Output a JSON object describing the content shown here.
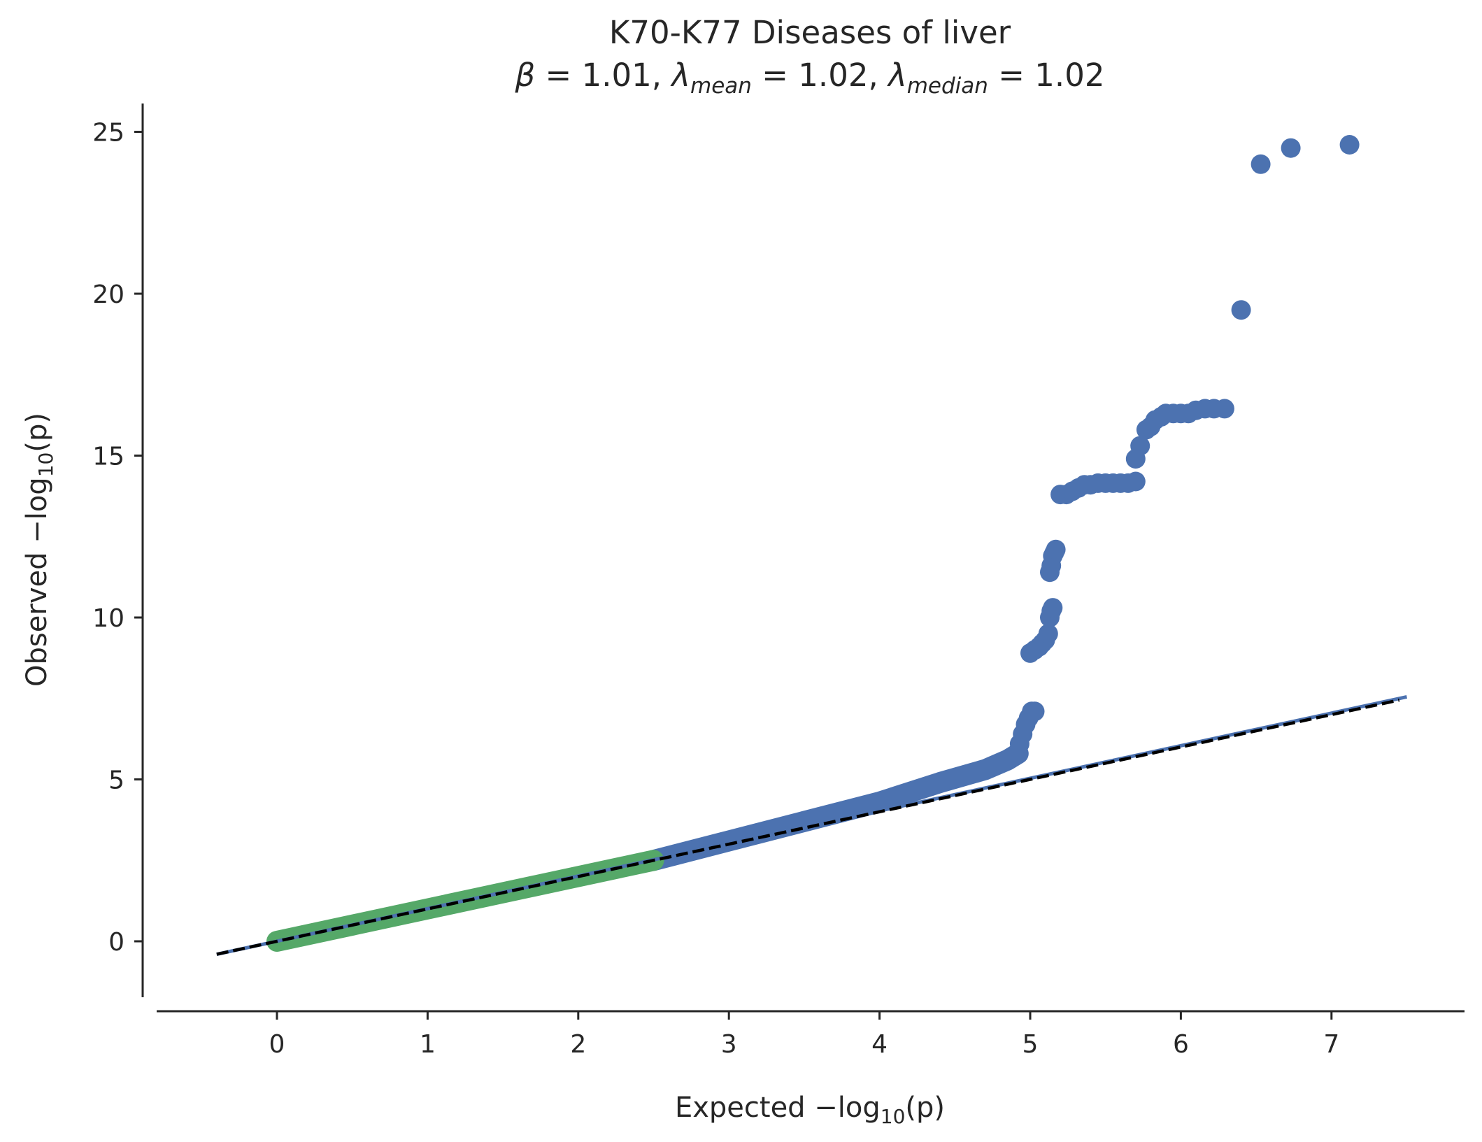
{
  "chart_data": {
    "type": "scatter",
    "title": "K70-K77 Diseases of liver",
    "subtitle": {
      "beta_symbol": "β",
      "beta_value": "1.01",
      "lambda_symbol": "λ",
      "mean_sub": "mean",
      "mean_value": "1.02",
      "median_sub": "median",
      "median_value": "1.02",
      "separator": ", ",
      "equals": " = "
    },
    "xlabel": {
      "prefix": "Expected −log",
      "sub": "10",
      "suffix": "(p)"
    },
    "ylabel": {
      "prefix": "Observed −log",
      "sub": "10",
      "suffix": "(p)"
    },
    "xlim": [
      -0.8,
      7.85
    ],
    "ylim": [
      -1.65,
      26.0
    ],
    "x_ticks": [
      0,
      1,
      2,
      3,
      4,
      5,
      6,
      7
    ],
    "y_ticks": [
      0,
      5,
      10,
      15,
      20,
      25
    ],
    "colors": {
      "null_points": "#55a868",
      "points": "#4c72b0",
      "fit_line": "#4c72b0",
      "reference_line": "#000000",
      "axis": "#262626"
    },
    "reference_line": {
      "style": "dashed",
      "x": [
        -0.4,
        7.45
      ],
      "y": [
        -0.4,
        7.45
      ]
    },
    "fit_line": {
      "x": [
        -0.4,
        7.5
      ],
      "y": [
        -0.4,
        7.55
      ]
    },
    "null_band": {
      "x": [
        0.0,
        2.5
      ],
      "y": [
        0.0,
        2.5
      ]
    },
    "trend_band": {
      "x": [
        2.5,
        3.0,
        3.5,
        4.0,
        4.4,
        4.7,
        4.85,
        4.92
      ],
      "y": [
        2.5,
        3.1,
        3.7,
        4.3,
        4.9,
        5.3,
        5.6,
        5.8
      ]
    },
    "series": [
      {
        "x": [
          4.93,
          4.95,
          4.97,
          4.99,
          5.01,
          5.03,
          5.0,
          5.03,
          5.06,
          5.08,
          5.1,
          5.12,
          5.13,
          5.14,
          5.15,
          5.13,
          5.14,
          5.15,
          5.16,
          5.17,
          5.2,
          5.24,
          5.28,
          5.32,
          5.36,
          5.4,
          5.45,
          5.5,
          5.55,
          5.6,
          5.65,
          5.7,
          5.7,
          5.73,
          5.77,
          5.8,
          5.83,
          5.87,
          5.9,
          5.95,
          6.0,
          6.05,
          6.1,
          6.16,
          6.22,
          6.29,
          6.4,
          6.53,
          6.73,
          7.12
        ],
        "y": [
          6.1,
          6.4,
          6.7,
          6.9,
          7.1,
          7.1,
          8.9,
          9.0,
          9.1,
          9.2,
          9.3,
          9.5,
          10.0,
          10.2,
          10.3,
          11.4,
          11.6,
          11.9,
          12.0,
          12.1,
          13.8,
          13.8,
          13.9,
          14.0,
          14.1,
          14.1,
          14.15,
          14.15,
          14.15,
          14.15,
          14.15,
          14.2,
          14.9,
          15.3,
          15.8,
          15.9,
          16.1,
          16.2,
          16.3,
          16.3,
          16.3,
          16.3,
          16.4,
          16.45,
          16.45,
          16.45,
          19.5,
          24.0,
          24.5,
          24.6
        ]
      }
    ],
    "grid": false,
    "legend": "none"
  }
}
